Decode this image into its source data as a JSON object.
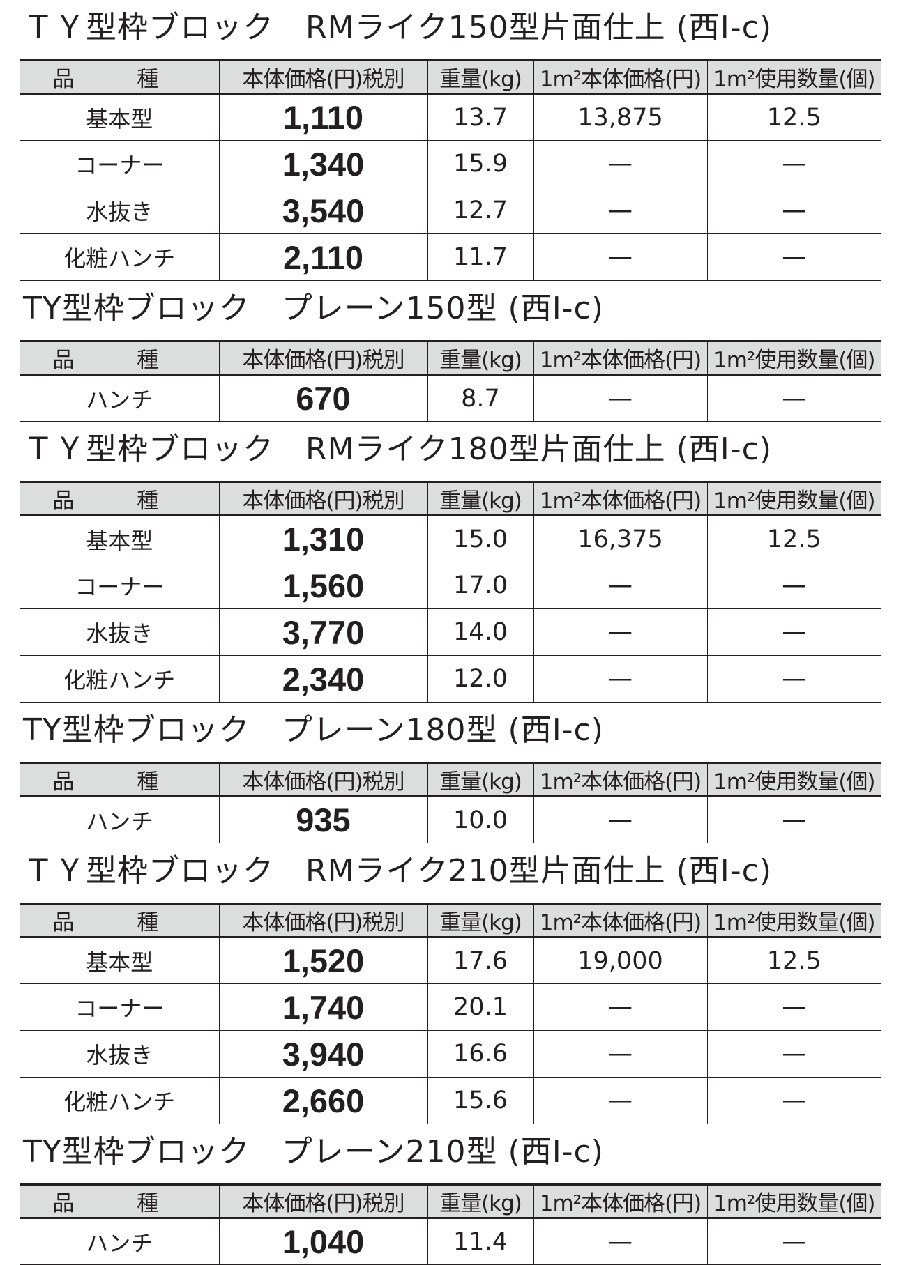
{
  "headers": [
    "品 種",
    "本体価格(円)税別",
    "重量(kg)",
    "1m²本体価格(円)",
    "1m²使用数量(個)"
  ],
  "sections": [
    {
      "title": "ＴＹ型枠ブロック　RMライク150型片面仕上 (西Ⅰ-c)",
      "rows": [
        [
          "基本型",
          "1,110",
          "13.7",
          "13,875",
          "12.5"
        ],
        [
          "コーナー",
          "1,340",
          "15.9",
          "—",
          "—"
        ],
        [
          "水抜き",
          "3,540",
          "12.7",
          "—",
          "—"
        ],
        [
          "化粧ハンチ",
          "2,110",
          "11.7",
          "—",
          "—"
        ]
      ]
    },
    {
      "title": "TY型枠ブロック　プレーン150型 (西Ⅰ-c)",
      "rows": [
        [
          "ハンチ",
          "670",
          "8.7",
          "—",
          "—"
        ]
      ]
    },
    {
      "title": "ＴＹ型枠ブロック　RMライク180型片面仕上 (西Ⅰ-c)",
      "rows": [
        [
          "基本型",
          "1,310",
          "15.0",
          "16,375",
          "12.5"
        ],
        [
          "コーナー",
          "1,560",
          "17.0",
          "—",
          "—"
        ],
        [
          "水抜き",
          "3,770",
          "14.0",
          "—",
          "—"
        ],
        [
          "化粧ハンチ",
          "2,340",
          "12.0",
          "—",
          "—"
        ]
      ]
    },
    {
      "title": "TY型枠ブロック　プレーン180型 (西Ⅰ-c)",
      "rows": [
        [
          "ハンチ",
          "935",
          "10.0",
          "—",
          "—"
        ]
      ]
    },
    {
      "title": "ＴＹ型枠ブロック　RMライク210型片面仕上 (西Ⅰ-c)",
      "rows": [
        [
          "基本型",
          "1,520",
          "17.6",
          "19,000",
          "12.5"
        ],
        [
          "コーナー",
          "1,740",
          "20.1",
          "—",
          "—"
        ],
        [
          "水抜き",
          "3,940",
          "16.6",
          "—",
          "—"
        ],
        [
          "化粧ハンチ",
          "2,660",
          "15.6",
          "—",
          "—"
        ]
      ]
    },
    {
      "title": "TY型枠ブロック　プレーン210型 (西Ⅰ-c)",
      "rows": [
        [
          "ハンチ",
          "1,040",
          "11.4",
          "—",
          "—"
        ]
      ]
    }
  ],
  "colors": {
    "header_bg": "#dcdddd",
    "text": "#231f20"
  }
}
